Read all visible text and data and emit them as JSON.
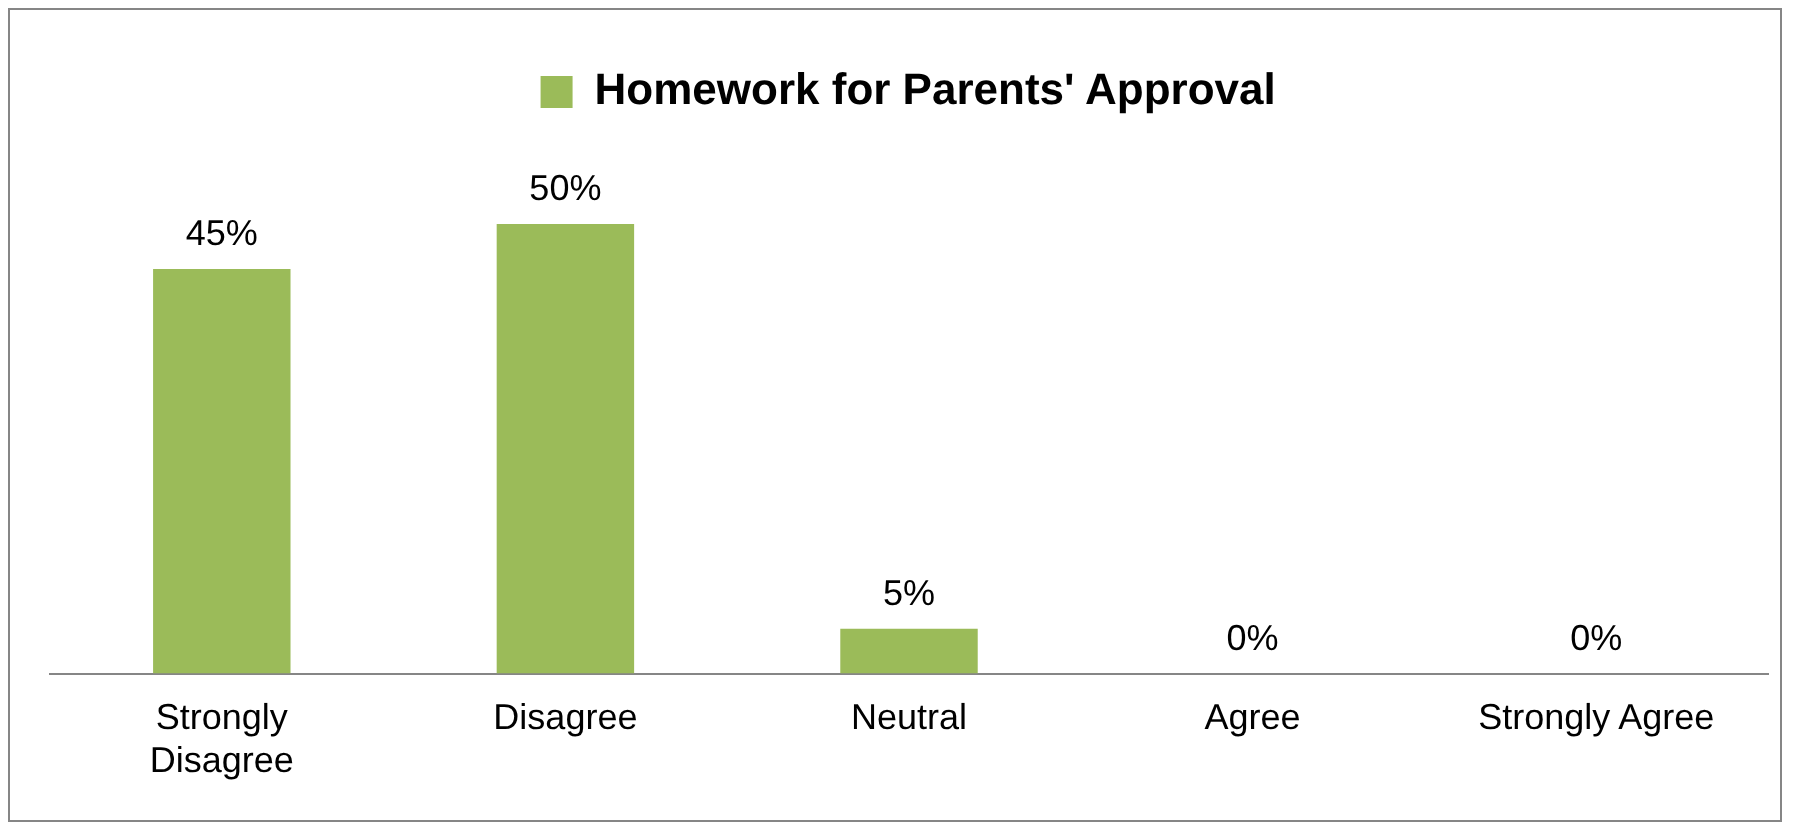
{
  "chart_data": {
    "type": "bar",
    "categories": [
      "Strongly Disagree",
      "Disagree",
      "Neutral",
      "Agree",
      "Strongly Agree"
    ],
    "series": [
      {
        "name": "Homework for Parents' Approval",
        "color": "#9bbb59",
        "values": [
          45,
          50,
          5,
          0,
          0
        ],
        "value_labels": [
          "45%",
          "50%",
          "5%",
          "0%",
          "0%"
        ]
      }
    ],
    "legend": "top",
    "grid": false,
    "tick_labels": "x"
  }
}
